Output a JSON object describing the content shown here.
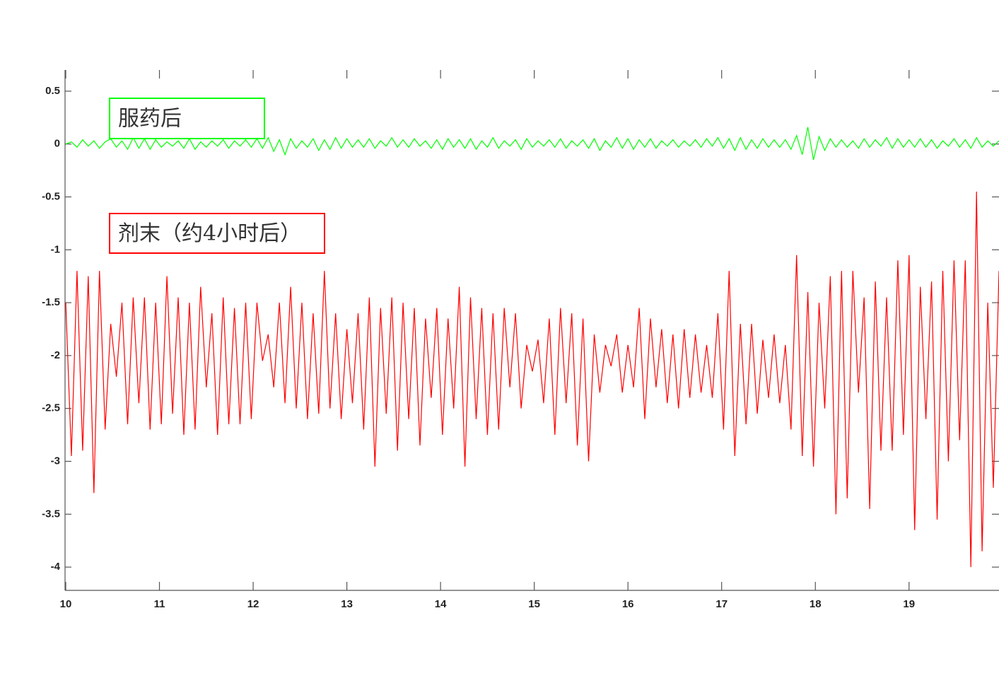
{
  "chart_data": {
    "type": "line",
    "x": [
      10,
      10.06,
      10.12,
      10.18,
      10.24,
      10.3,
      10.36,
      10.42,
      10.48,
      10.54,
      10.6,
      10.66,
      10.72,
      10.78,
      10.84,
      10.9,
      10.96,
      11.02,
      11.08,
      11.14,
      11.2,
      11.26,
      11.32,
      11.38,
      11.44,
      11.5,
      11.56,
      11.62,
      11.68,
      11.74,
      11.8,
      11.86,
      11.92,
      11.98,
      12.04,
      12.1,
      12.16,
      12.22,
      12.28,
      12.34,
      12.4,
      12.46,
      12.52,
      12.58,
      12.64,
      12.7,
      12.76,
      12.82,
      12.88,
      12.94,
      13,
      13.06,
      13.12,
      13.18,
      13.24,
      13.3,
      13.36,
      13.42,
      13.48,
      13.54,
      13.6,
      13.66,
      13.72,
      13.78,
      13.84,
      13.9,
      13.96,
      14.02,
      14.08,
      14.14,
      14.2,
      14.26,
      14.32,
      14.38,
      14.44,
      14.5,
      14.56,
      14.62,
      14.68,
      14.74,
      14.8,
      14.86,
      14.92,
      14.98,
      15.04,
      15.1,
      15.16,
      15.22,
      15.28,
      15.34,
      15.4,
      15.46,
      15.52,
      15.58,
      15.64,
      15.7,
      15.76,
      15.82,
      15.88,
      15.94,
      16,
      16.06,
      16.12,
      16.18,
      16.24,
      16.3,
      16.36,
      16.42,
      16.48,
      16.54,
      16.6,
      16.66,
      16.72,
      16.78,
      16.84,
      16.9,
      16.96,
      17.02,
      17.08,
      17.14,
      17.2,
      17.26,
      17.32,
      17.38,
      17.44,
      17.5,
      17.56,
      17.62,
      17.68,
      17.74,
      17.8,
      17.86,
      17.92,
      17.98,
      18.04,
      18.1,
      18.16,
      18.22,
      18.28,
      18.34,
      18.4,
      18.46,
      18.52,
      18.58,
      18.64,
      18.7,
      18.76,
      18.82,
      18.88,
      18.94,
      19,
      19.06,
      19.12,
      19.18,
      19.24,
      19.3,
      19.36,
      19.42,
      19.48,
      19.54,
      19.6,
      19.66,
      19.72,
      19.78,
      19.84,
      19.9,
      19.96
    ],
    "series": [
      {
        "name": "服药后",
        "color": "#00ff00",
        "values": [
          0.0,
          0.02,
          -0.03,
          0.04,
          -0.02,
          0.03,
          -0.04,
          0.02,
          0.05,
          -0.03,
          0.03,
          -0.05,
          0.06,
          -0.04,
          0.05,
          -0.05,
          0.04,
          -0.03,
          0.02,
          -0.02,
          0.03,
          -0.04,
          0.05,
          -0.05,
          0.02,
          -0.03,
          0.03,
          -0.02,
          0.04,
          -0.04,
          0.03,
          -0.02,
          0.04,
          -0.03,
          0.05,
          -0.04,
          0.06,
          -0.07,
          0.04,
          -0.1,
          0.05,
          -0.04,
          0.03,
          -0.03,
          0.05,
          -0.06,
          0.04,
          -0.05,
          0.06,
          -0.04,
          0.05,
          -0.03,
          0.04,
          -0.03,
          0.05,
          -0.04,
          0.03,
          -0.02,
          0.06,
          -0.03,
          0.04,
          -0.03,
          0.05,
          -0.02,
          0.03,
          -0.04,
          0.04,
          -0.05,
          0.05,
          -0.03,
          0.04,
          -0.04,
          0.05,
          -0.05,
          0.03,
          -0.03,
          0.06,
          -0.04,
          0.03,
          -0.02,
          0.04,
          -0.05,
          0.05,
          -0.03,
          0.03,
          -0.02,
          0.04,
          -0.03,
          0.05,
          -0.04,
          0.03,
          -0.02,
          0.04,
          -0.04,
          0.05,
          -0.06,
          0.03,
          -0.03,
          0.06,
          -0.04,
          0.05,
          -0.05,
          0.04,
          -0.03,
          0.05,
          -0.04,
          0.03,
          -0.02,
          0.04,
          -0.03,
          0.03,
          -0.02,
          0.04,
          -0.03,
          0.05,
          -0.02,
          0.06,
          -0.04,
          0.05,
          -0.06,
          0.06,
          -0.05,
          0.04,
          -0.04,
          0.05,
          -0.03,
          0.04,
          -0.03,
          0.04,
          -0.05,
          0.08,
          -0.1,
          0.16,
          -0.15,
          0.07,
          -0.06,
          0.05,
          -0.03,
          0.04,
          -0.03,
          0.03,
          -0.04,
          0.05,
          -0.03,
          0.04,
          -0.02,
          0.06,
          -0.04,
          0.05,
          -0.03,
          0.04,
          -0.03,
          0.05,
          -0.03,
          0.04,
          -0.04,
          0.03,
          -0.02,
          0.05,
          -0.03,
          0.04,
          -0.04,
          0.06,
          -0.03,
          0.03,
          -0.02,
          0.03
        ]
      },
      {
        "name": "剂末（约4小时后）",
        "color": "#ff0000",
        "values": [
          -1.5,
          -2.95,
          -1.2,
          -2.9,
          -1.25,
          -3.3,
          -1.2,
          -2.7,
          -1.7,
          -2.2,
          -1.5,
          -2.65,
          -1.45,
          -2.45,
          -1.45,
          -2.7,
          -1.5,
          -2.65,
          -1.25,
          -2.55,
          -1.45,
          -2.75,
          -1.5,
          -2.7,
          -1.35,
          -2.3,
          -1.6,
          -2.75,
          -1.45,
          -2.65,
          -1.55,
          -2.65,
          -1.5,
          -2.6,
          -1.5,
          -2.05,
          -1.8,
          -2.3,
          -1.5,
          -2.45,
          -1.35,
          -2.5,
          -1.5,
          -2.6,
          -1.6,
          -2.55,
          -1.2,
          -2.5,
          -1.6,
          -2.6,
          -1.75,
          -2.45,
          -1.6,
          -2.7,
          -1.45,
          -3.05,
          -1.55,
          -2.55,
          -1.45,
          -2.9,
          -1.5,
          -2.6,
          -1.55,
          -2.85,
          -1.65,
          -2.4,
          -1.55,
          -2.75,
          -1.65,
          -2.5,
          -1.35,
          -3.05,
          -1.45,
          -2.6,
          -1.55,
          -2.75,
          -1.6,
          -2.7,
          -1.55,
          -2.3,
          -1.6,
          -2.5,
          -1.9,
          -2.15,
          -1.85,
          -2.45,
          -1.65,
          -2.75,
          -1.55,
          -2.45,
          -1.6,
          -2.85,
          -1.65,
          -3.0,
          -1.8,
          -2.35,
          -1.9,
          -2.1,
          -1.8,
          -2.35,
          -1.9,
          -2.3,
          -1.55,
          -2.6,
          -1.65,
          -2.3,
          -1.75,
          -2.45,
          -1.8,
          -2.5,
          -1.75,
          -2.4,
          -1.8,
          -2.35,
          -1.9,
          -2.4,
          -1.6,
          -2.7,
          -1.2,
          -2.95,
          -1.7,
          -2.65,
          -1.7,
          -2.55,
          -1.85,
          -2.4,
          -1.8,
          -2.45,
          -1.9,
          -2.7,
          -1.05,
          -2.95,
          -1.4,
          -3.05,
          -1.5,
          -2.5,
          -1.25,
          -3.5,
          -1.2,
          -3.35,
          -1.2,
          -2.35,
          -1.45,
          -3.45,
          -1.3,
          -2.9,
          -1.45,
          -2.9,
          -1.1,
          -2.75,
          -1.05,
          -3.65,
          -1.35,
          -2.6,
          -1.3,
          -3.55,
          -1.2,
          -3.0,
          -1.1,
          -2.8,
          -1.1,
          -4.0,
          -0.45,
          -3.85,
          -1.5,
          -3.25,
          -1.2
        ]
      }
    ],
    "xlim": [
      10,
      19.96
    ],
    "ylim": [
      -4.22,
      0.7
    ],
    "xticks": [
      10,
      11,
      12,
      13,
      14,
      15,
      16,
      17,
      18,
      19
    ],
    "yticks": [
      -4,
      -3.5,
      -3,
      -2.5,
      -2,
      -1.5,
      -1,
      -0.5,
      0,
      0.5
    ]
  }
}
